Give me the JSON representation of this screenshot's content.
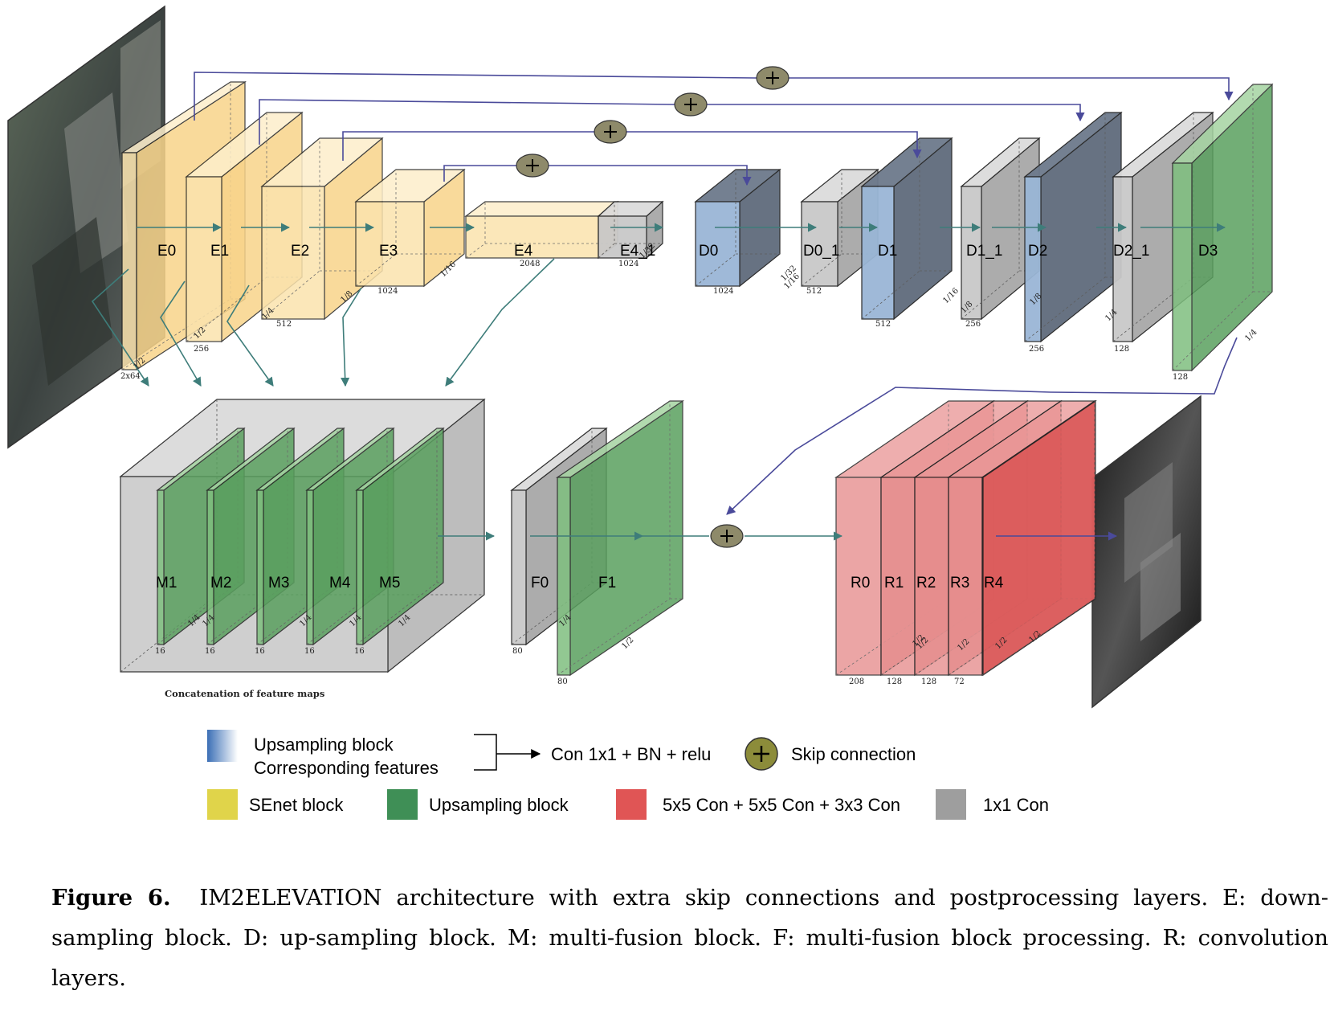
{
  "blocks": [
    {
      "id": "E0",
      "label": "E0",
      "dim": "2x64",
      "ratio": "1/2",
      "kind": "encoder"
    },
    {
      "id": "E1",
      "label": "E1",
      "dim": "256",
      "ratio": "1/2",
      "kind": "encoder"
    },
    {
      "id": "E2",
      "label": "E2",
      "dim": "512",
      "ratio": "1/4",
      "kind": "encoder"
    },
    {
      "id": "E3",
      "label": "E3",
      "dim": "1024",
      "ratio": "1/8",
      "kind": "encoder"
    },
    {
      "id": "E4",
      "label": "E4",
      "dim": "2048",
      "ratio": "1/16",
      "kind": "encoder"
    },
    {
      "id": "E4_1",
      "label": "E4_1",
      "dim": "1024",
      "ratio": "1/32",
      "kind": "conv1x1"
    },
    {
      "id": "D0",
      "label": "D0",
      "dim": "1024",
      "ratio": "1/32",
      "kind": "decoder"
    },
    {
      "id": "D0_1",
      "label": "D0_1",
      "dim": "512",
      "ratio": "1/16",
      "kind": "conv1x1"
    },
    {
      "id": "D1",
      "label": "D1",
      "dim": "512",
      "ratio": "1/16",
      "kind": "decoder"
    },
    {
      "id": "D1_1",
      "label": "D1_1",
      "dim": "256",
      "ratio": "1/8",
      "kind": "conv1x1"
    },
    {
      "id": "D2",
      "label": "D2",
      "dim": "256",
      "ratio": "1/8",
      "kind": "decoder"
    },
    {
      "id": "D2_1",
      "label": "D2_1",
      "dim": "128",
      "ratio": "1/4",
      "kind": "conv1x1"
    },
    {
      "id": "D3",
      "label": "D3",
      "dim": "128",
      "ratio": "1/4",
      "kind": "upsample"
    },
    {
      "id": "M1",
      "label": "M1",
      "dim": "16",
      "ratio": "1/4",
      "kind": "upsample"
    },
    {
      "id": "M2",
      "label": "M2",
      "dim": "16",
      "ratio": "1/4",
      "kind": "upsample"
    },
    {
      "id": "M3",
      "label": "M3",
      "dim": "16",
      "ratio": "1/4",
      "kind": "upsample"
    },
    {
      "id": "M4",
      "label": "M4",
      "dim": "16",
      "ratio": "1/4",
      "kind": "upsample"
    },
    {
      "id": "M5",
      "label": "M5",
      "dim": "16",
      "ratio": "1/4",
      "kind": "upsample"
    },
    {
      "id": "F0",
      "label": "F0",
      "dim": "80",
      "ratio": "1/4",
      "kind": "conv1x1"
    },
    {
      "id": "F1",
      "label": "F1",
      "dim": "80",
      "ratio": "1/2",
      "kind": "upsample"
    },
    {
      "id": "R0",
      "label": "R0",
      "dim": "208",
      "ratio": "1/2",
      "kind": "conv"
    },
    {
      "id": "R1",
      "label": "R1",
      "dim": "128",
      "ratio": "1/2",
      "kind": "conv"
    },
    {
      "id": "R2",
      "label": "R2",
      "dim": "128",
      "ratio": "1/2",
      "kind": "conv"
    },
    {
      "id": "R3",
      "label": "R3",
      "dim": "72",
      "ratio": "1/2",
      "kind": "conv"
    },
    {
      "id": "R4",
      "label": "R4",
      "dim": "",
      "ratio": "1/2",
      "kind": "conv"
    }
  ],
  "concat_label": "Concatenation of feature maps",
  "legend": {
    "upsampling_block": "Upsampling block",
    "corresponding_features": "Corresponding features",
    "con_bn_relu": "Con 1x1 + BN + relu",
    "skip_connection": "Skip connection",
    "senet_block": "SEnet block",
    "upsampling_block2": "Upsampling  block",
    "conv_stack": "5x5 Con + 5x5 Con + 3x3 Con",
    "conv1x1": "1x1 Con",
    "colors": {
      "senet": "#e0d44a",
      "upsample": "#3f8f56",
      "conv": "#e05555",
      "conv1x1": "#9e9e9e",
      "decoder_start": "#3b6fb5"
    }
  },
  "caption": {
    "figure": "Figure 6.",
    "text": "IM2ELEVATION architecture with extra skip connections and postprocessing layers. E: down-sampling block. D: up-sampling block. M: multi-fusion block. F: multi-fusion block processing. R: convolution layers."
  }
}
